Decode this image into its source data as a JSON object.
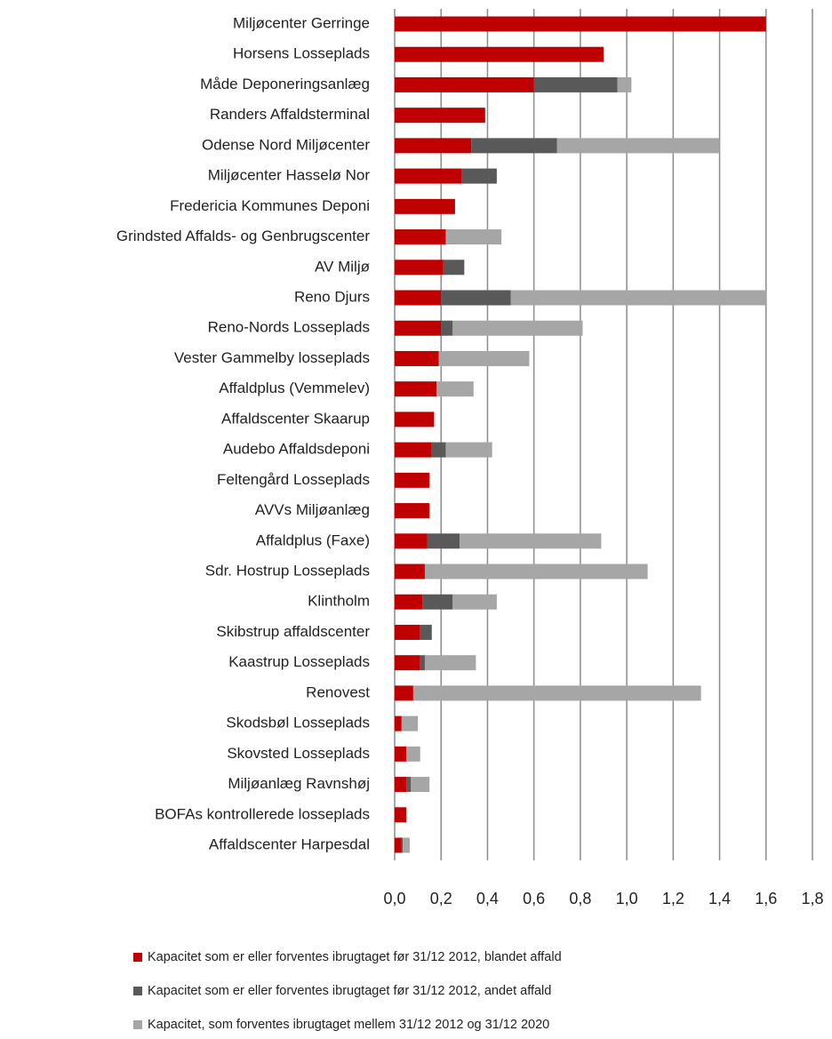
{
  "chart_data": {
    "type": "stacked-barh",
    "categories": [
      "Miljøcenter Gerringe",
      "Horsens Losseplads",
      "Måde Deponeringsanlæg",
      "Randers Affaldsterminal",
      "Odense Nord Miljøcenter",
      "Miljøcenter Hasselø Nor",
      "Fredericia Kommunes Deponi",
      "Grindsted Affalds- og Genbrugscenter",
      "AV Miljø",
      "Reno Djurs",
      "Reno-Nords Losseplads",
      "Vester Gammelby  losseplads",
      "Affaldplus (Vemmelev)",
      "Affaldscenter Skaarup",
      "Audebo Affaldsdeponi",
      "Feltengård Losseplads",
      "AVVs Miljøanlæg",
      "Affaldplus (Faxe)",
      "Sdr. Hostrup Losseplads",
      "Klintholm",
      "Skibstrup affaldscenter",
      "Kaastrup Losseplads",
      "Renovest",
      "Skodsbøl Losseplads",
      "Skovsted Losseplads",
      "Miljøanlæg Ravnshøj",
      "BOFAs kontrollerede losseplads",
      "Affaldscenter Harpesdal"
    ],
    "series": [
      {
        "name": "Kapacitet som er eller forventes ibrugtaget før 31/12 2012, blandet affald",
        "color": "#c00000",
        "values": [
          1.6,
          0.9,
          0.6,
          0.39,
          0.33,
          0.29,
          0.26,
          0.22,
          0.21,
          0.2,
          0.2,
          0.19,
          0.18,
          0.17,
          0.16,
          0.15,
          0.15,
          0.14,
          0.13,
          0.12,
          0.11,
          0.11,
          0.08,
          0.03,
          0.05,
          0.05,
          0.05,
          0.03
        ]
      },
      {
        "name": "Kapacitet som er eller forventes ibrugtaget før 31/12 2012, andet affald",
        "color": "#595959",
        "values": [
          0,
          0,
          0.36,
          0,
          0.37,
          0.15,
          0,
          0,
          0.09,
          0.3,
          0.05,
          0,
          0,
          0,
          0.06,
          0,
          0,
          0.14,
          0,
          0.13,
          0.05,
          0.02,
          0,
          0,
          0,
          0.02,
          0,
          0.005
        ]
      },
      {
        "name": "Kapacitet, som forventes ibrugtaget mellem 31/12 2012 og 31/12 2020",
        "color": "#a6a6a6",
        "values": [
          0,
          0,
          0.06,
          0,
          0.7,
          0,
          0,
          0.24,
          0,
          1.1,
          0.56,
          0.39,
          0.16,
          0,
          0.2,
          0,
          0,
          0.61,
          0.96,
          0.19,
          0,
          0.22,
          1.24,
          0.07,
          0.06,
          0.08,
          0,
          0.03
        ]
      }
    ],
    "xlim": [
      0,
      1.8
    ],
    "xticks": [
      {
        "value": 0,
        "label": "0,0"
      },
      {
        "value": 0.2,
        "label": "0,2"
      },
      {
        "value": 0.4,
        "label": "0,4"
      },
      {
        "value": 0.6,
        "label": "0,6"
      },
      {
        "value": 0.8,
        "label": "0,8"
      },
      {
        "value": 1.0,
        "label": "1,0"
      },
      {
        "value": 1.2,
        "label": "1,2"
      },
      {
        "value": 1.4,
        "label": "1,4"
      },
      {
        "value": 1.6,
        "label": "1,6"
      },
      {
        "value": 1.8,
        "label": "1,8"
      }
    ],
    "grid": true,
    "legend": "bottom"
  }
}
